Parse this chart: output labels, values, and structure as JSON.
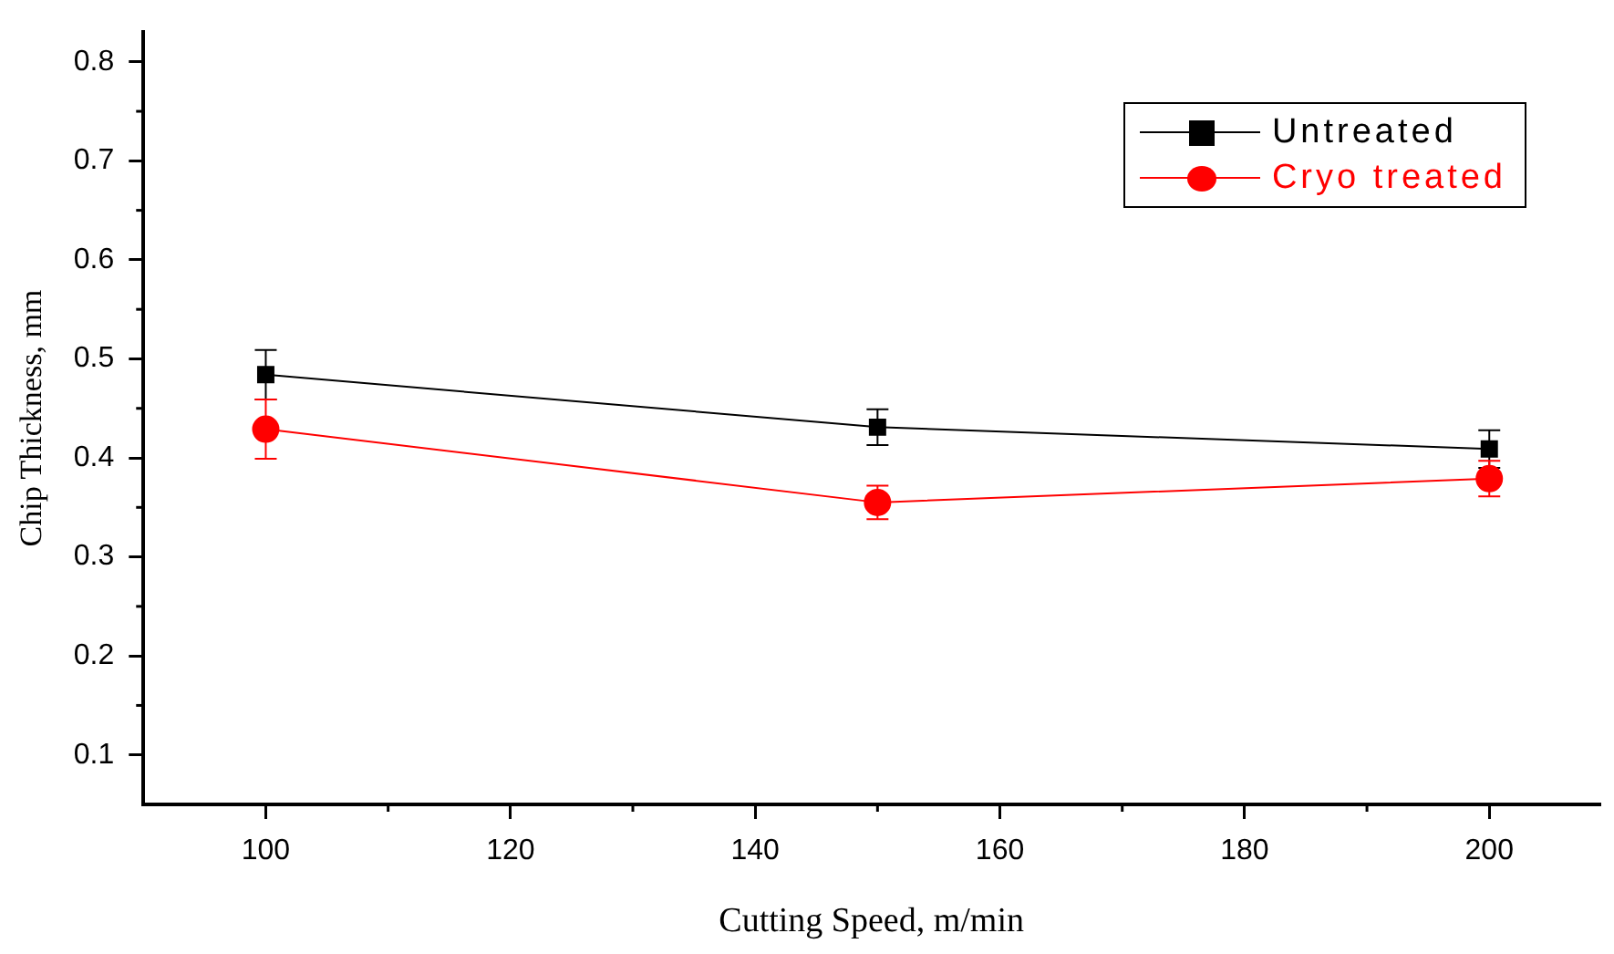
{
  "chart_data": {
    "type": "line",
    "xlabel": "Cutting Speed, m/min",
    "ylabel": "Chip Thickness, mm",
    "x": [
      100,
      150,
      200
    ],
    "series": [
      {
        "name": "Untreated",
        "color": "#000000",
        "marker": "square",
        "values": [
          0.484,
          0.431,
          0.409
        ],
        "errors": [
          0.025,
          0.018,
          0.019
        ]
      },
      {
        "name": "Cryo treated",
        "color": "#ff0000",
        "marker": "circle",
        "values": [
          0.429,
          0.355,
          0.379
        ],
        "errors": [
          0.03,
          0.017,
          0.018
        ]
      }
    ],
    "xlim": [
      90,
      209
    ],
    "xticks": [
      100,
      120,
      140,
      160,
      180,
      200
    ],
    "ylim": [
      0.05,
      0.83
    ],
    "yticks": [
      0.1,
      0.2,
      0.3,
      0.4,
      0.5,
      0.6,
      0.7,
      0.8
    ],
    "grid": false,
    "legend": "top right",
    "line_style": "solid"
  }
}
